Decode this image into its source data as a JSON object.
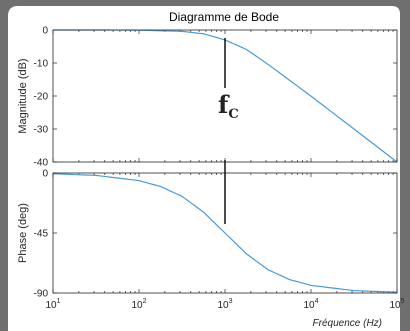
{
  "chart_data": {
    "type": "line",
    "title": "Diagramme de Bode",
    "xlabel": "Fréquence (Hz)",
    "x_scale": "log",
    "xlim": [
      10,
      100000
    ],
    "x_ticks": [
      {
        "value": 10,
        "base": "10",
        "exp": "1"
      },
      {
        "value": 100,
        "base": "10",
        "exp": "2"
      },
      {
        "value": 1000,
        "base": "10",
        "exp": "3"
      },
      {
        "value": 10000,
        "base": "10",
        "exp": "4"
      },
      {
        "value": 100000,
        "base": "10",
        "exp": "5"
      }
    ],
    "cutoff": {
      "frequency": 1000,
      "label": "f",
      "subscript": "C"
    },
    "line_color": "#4a9ad4",
    "frame_color": "#bdbdbd",
    "panels": [
      {
        "name": "magnitude",
        "ylabel": "Magnitude (dB)",
        "ylim": [
          -40,
          0
        ],
        "y_ticks": [
          0,
          -10,
          -20,
          -30,
          -40
        ],
        "y_tick_labels": [
          "0",
          "-10",
          "-20",
          "-30",
          "-40"
        ],
        "series": [
          {
            "x": [
              10,
              31.6,
              100,
              316,
              562,
              1000,
              1780,
              3160,
              10000,
              31600,
              100000
            ],
            "y": [
              0,
              0,
              -0.04,
              -0.41,
              -1.14,
              -3.01,
              -5.9,
              -10.4,
              -20.04,
              -30.0,
              -40.0
            ]
          }
        ]
      },
      {
        "name": "phase",
        "ylabel": "Phase (deg)",
        "ylim": [
          -90,
          0
        ],
        "y_ticks": [
          0,
          -45,
          -90
        ],
        "y_tick_labels": [
          "0",
          "-45",
          "-90"
        ],
        "series": [
          {
            "x": [
              10,
              31.6,
              100,
              178,
              316,
              562,
              1000,
              1780,
              3160,
              5620,
              10000,
              31600,
              100000
            ],
            "y": [
              -0.57,
              -1.8,
              -5.7,
              -10.1,
              -17.5,
              -29.3,
              -45,
              -60.7,
              -72.5,
              -79.9,
              -84.3,
              -88.2,
              -89.4
            ]
          }
        ]
      }
    ]
  }
}
